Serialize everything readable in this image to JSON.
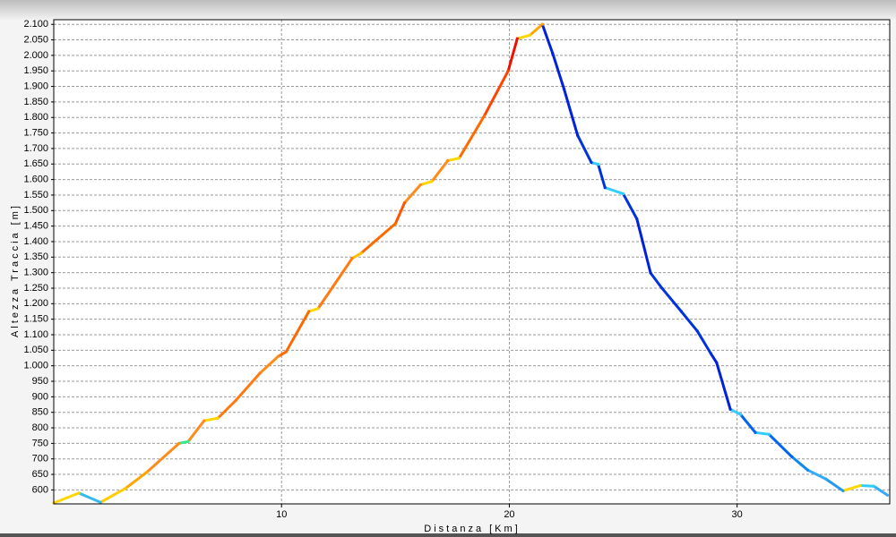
{
  "chart_data": {
    "type": "line",
    "x_label": "Distanza [Km]",
    "y_label": "Altezza Traccia [m]",
    "x": [
      0,
      1.1,
      2.05,
      3.15,
      4.1,
      5.5,
      5.9,
      6.6,
      7.2,
      8.0,
      9.05,
      9.85,
      10.2,
      11.2,
      11.6,
      13.1,
      13.5,
      15.0,
      15.4,
      16.1,
      16.6,
      17.3,
      17.8,
      18.9,
      19.95,
      20.35,
      20.9,
      21.45,
      21.9,
      22.4,
      23.0,
      23.6,
      23.9,
      24.2,
      25.0,
      25.6,
      26.2,
      26.7,
      27.55,
      28.25,
      28.85,
      29.1,
      29.7,
      30.15,
      30.8,
      31.4,
      32.4,
      33.1,
      33.9,
      34.65,
      35.4,
      36.0,
      36.6
    ],
    "series": [
      {
        "values": [
          558,
          590,
          560,
          605,
          658,
          750,
          756,
          823,
          831,
          889,
          976,
          1030,
          1045,
          1175,
          1184,
          1346,
          1363,
          1458,
          1525,
          1583,
          1594,
          1661,
          1669,
          1805,
          1950,
          2054,
          2065,
          2100,
          2007,
          1892,
          1742,
          1655,
          1649,
          1574,
          1554,
          1473,
          1299,
          1250,
          1175,
          1112,
          1039,
          1010,
          860,
          843,
          785,
          779,
          707,
          664,
          635,
          597,
          614,
          612,
          583
        ],
        "colors": [
          "#ffd700",
          "#ffd700",
          "#33bbee",
          "#ffcc00",
          "#ffa500",
          "#ff8c1a",
          "#33ee88",
          "#ff8c1a",
          "#ffd700",
          "#ff7a10",
          "#ff7a10",
          "#ff8c1a",
          "#ff6a00",
          "#ff6a00",
          "#ffd700",
          "#ff7a10",
          "#ffc000",
          "#ff6a00",
          "#ff5500",
          "#ff8c1a",
          "#ffd700",
          "#ff8c1a",
          "#ffd700",
          "#ff6a00",
          "#ff4500",
          "#ee1100",
          "#ffd700",
          "#ffa500",
          "#0022dd",
          "#0022dd",
          "#0022dd",
          "#0033dd",
          "#33ccff",
          "#0033dd",
          "#33ccff",
          "#0033dd",
          "#0022dd",
          "#0033dd",
          "#0033dd",
          "#0033dd",
          "#0033dd",
          "#0022dd",
          "#0022dd",
          "#33ccff",
          "#0066ee",
          "#33ccff",
          "#0066ee",
          "#1188ee",
          "#33aaff",
          "#2299ee",
          "#ffd700",
          "#33ccff",
          "#33aaff"
        ]
      }
    ],
    "xlim": [
      0,
      36.7
    ],
    "ylim": [
      555,
      2115
    ],
    "xticks": [
      10,
      20,
      30
    ],
    "yticks": [
      600,
      650,
      700,
      750,
      800,
      850,
      900,
      950,
      {
        "value": 1000,
        "label": "1.000"
      },
      {
        "value": 1050,
        "label": "1.050"
      },
      {
        "value": 1100,
        "label": "1.100"
      },
      {
        "value": 1150,
        "label": "1.150"
      },
      {
        "value": 1200,
        "label": "1.200"
      },
      {
        "value": 1250,
        "label": "1.250"
      },
      {
        "value": 1300,
        "label": "1.300"
      },
      {
        "value": 1350,
        "label": "1.350"
      },
      {
        "value": 1400,
        "label": "1.400"
      },
      {
        "value": 1450,
        "label": "1.450"
      },
      {
        "value": 1500,
        "label": "1.500"
      },
      {
        "value": 1550,
        "label": "1.550"
      },
      {
        "value": 1600,
        "label": "1.600"
      },
      {
        "value": 1650,
        "label": "1.650"
      },
      {
        "value": 1700,
        "label": "1.700"
      },
      {
        "value": 1750,
        "label": "1.750"
      },
      {
        "value": 1800,
        "label": "1.800"
      },
      {
        "value": 1850,
        "label": "1.850"
      },
      {
        "value": 1900,
        "label": "1.900"
      },
      {
        "value": 1950,
        "label": "1.950"
      },
      {
        "value": 2000,
        "label": "2.000"
      },
      {
        "value": 2050,
        "label": "2.050"
      },
      {
        "value": 2100,
        "label": "2.100"
      }
    ],
    "grid": true
  }
}
